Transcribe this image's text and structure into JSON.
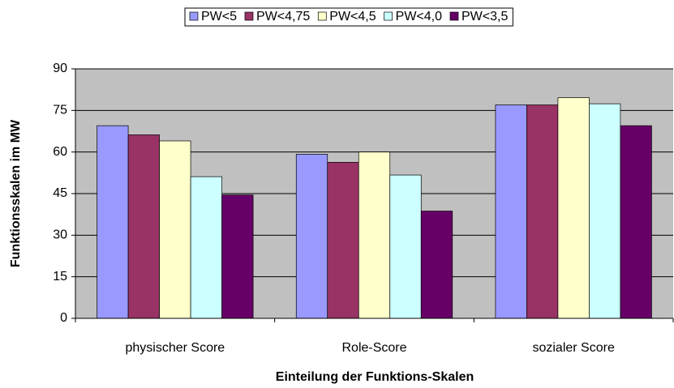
{
  "chart_data": {
    "type": "bar",
    "categories": [
      "physischer Score",
      "Role-Score",
      "sozialer Score"
    ],
    "series": [
      {
        "name": "PW<5",
        "color": "#9999ff",
        "values": [
          69.5,
          59.2,
          77
        ]
      },
      {
        "name": "PW<4,75",
        "color": "#993366",
        "values": [
          66.2,
          56.3,
          77
        ]
      },
      {
        "name": "PW<4,5",
        "color": "#ffffcc",
        "values": [
          64,
          60,
          79.6
        ]
      },
      {
        "name": "PW<4,0",
        "color": "#ccffff",
        "values": [
          51.1,
          51.7,
          77.4
        ]
      },
      {
        "name": "PW<3,5",
        "color": "#660066",
        "values": [
          44.5,
          38.7,
          69.5
        ]
      }
    ],
    "ylim": [
      0,
      90
    ],
    "yticks": [
      0,
      15,
      30,
      45,
      60,
      75,
      90
    ],
    "grid": true,
    "xlabel": "Einteilung der Funktions-Skalen",
    "ylabel": "Funktionsskalen im MW",
    "legend": "top"
  }
}
